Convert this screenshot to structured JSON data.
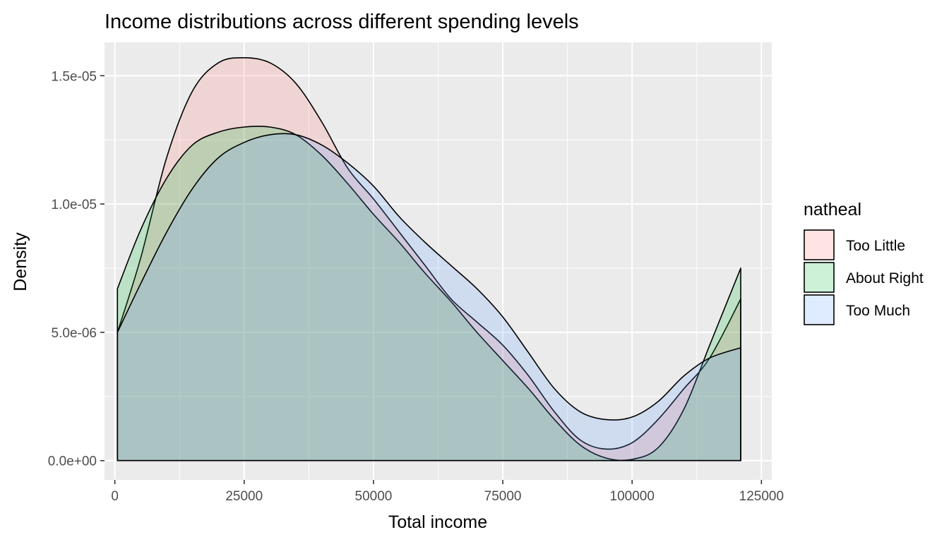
{
  "chart_data": {
    "type": "area",
    "subtype": "density",
    "title": "Income distributions across different spending levels",
    "xlabel": "Total income",
    "ylabel": "Density",
    "xlim": [
      -2000,
      127000
    ],
    "ylim": [
      -7.5e-07,
      1.63e-05
    ],
    "x_ticks": [
      0,
      25000,
      50000,
      75000,
      100000,
      125000
    ],
    "x_tick_labels": [
      "0",
      "25000",
      "50000",
      "75000",
      "100000",
      "125000"
    ],
    "y_ticks": [
      0,
      5e-06,
      1e-05,
      1.5e-05
    ],
    "y_tick_labels": [
      "0.0e+00",
      "5.0e-06",
      "1.0e-05",
      "1.5e-05"
    ],
    "grid": true,
    "legend": {
      "title": "natheal",
      "position": "right"
    },
    "series": [
      {
        "name": "Too Little",
        "color": "#f8766d",
        "x": [
          500,
          5000,
          10000,
          15000,
          20000,
          25000,
          30000,
          35000,
          40000,
          45000,
          50000,
          55000,
          60000,
          65000,
          70000,
          75000,
          80000,
          85000,
          90000,
          95000,
          100000,
          105000,
          110000,
          115000,
          121000
        ],
        "y": [
          5e-06,
          7.9e-06,
          1.18e-05,
          1.44e-05,
          1.55e-05,
          1.57e-05,
          1.55e-05,
          1.47e-05,
          1.32e-05,
          1.14e-05,
          1.02e-05,
          8.9e-06,
          7.6e-06,
          6.3e-06,
          5.4e-06,
          4.5e-06,
          3.3e-06,
          1.9e-06,
          8e-07,
          4.5e-07,
          7e-07,
          1.6e-06,
          2.8e-06,
          4e-06,
          6.3e-06
        ]
      },
      {
        "name": "About Right",
        "color": "#00ba38",
        "x": [
          500,
          5000,
          10000,
          15000,
          20000,
          25000,
          30000,
          35000,
          40000,
          45000,
          50000,
          55000,
          60000,
          65000,
          70000,
          75000,
          80000,
          85000,
          90000,
          95000,
          100000,
          105000,
          110000,
          115000,
          121000
        ],
        "y": [
          6.7e-06,
          9e-06,
          1.1e-05,
          1.23e-05,
          1.28e-05,
          1.3e-05,
          1.3e-05,
          1.27e-05,
          1.19e-05,
          1.08e-05,
          9.6e-06,
          8.5e-06,
          7.3e-06,
          6.2e-06,
          5e-06,
          3.9e-06,
          2.8e-06,
          1.6e-06,
          6e-07,
          1e-07,
          5e-08,
          5e-07,
          2e-06,
          4.5e-06,
          7.5e-06
        ]
      },
      {
        "name": "Too Much",
        "color": "#619cff",
        "x": [
          500,
          5000,
          10000,
          15000,
          20000,
          25000,
          30000,
          35000,
          40000,
          45000,
          50000,
          55000,
          60000,
          65000,
          70000,
          75000,
          80000,
          85000,
          90000,
          95000,
          100000,
          105000,
          110000,
          115000,
          121000
        ],
        "y": [
          5e-06,
          6.9e-06,
          8.9e-06,
          1.06e-05,
          1.18e-05,
          1.24e-05,
          1.27e-05,
          1.27e-05,
          1.23e-05,
          1.16e-05,
          1.07e-05,
          9.5e-06,
          8.5e-06,
          7.6e-06,
          6.7e-06,
          5.6e-06,
          4.2e-06,
          2.8e-06,
          1.9e-06,
          1.6e-06,
          1.7e-06,
          2.3e-06,
          3.3e-06,
          4e-06,
          4.4e-06
        ]
      }
    ]
  }
}
